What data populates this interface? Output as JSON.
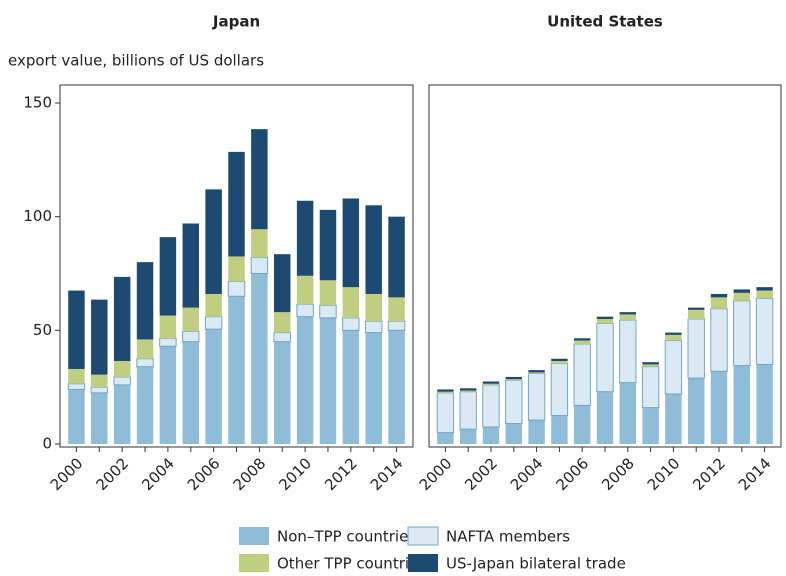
{
  "chart_data": [
    {
      "type": "stacked_bar",
      "title": "Japan",
      "ylabel": "export value, billions of US dollars",
      "categories": [
        "2000",
        null,
        "2002",
        null,
        "2004",
        null,
        "2006",
        null,
        "2008",
        null,
        "2010",
        null,
        "2012",
        null,
        "2014"
      ],
      "series": [
        {
          "name": "Non–TPP countries",
          "color": "#8fbcd6",
          "values": [
            24,
            22.5,
            26,
            34,
            43,
            45,
            50.5,
            65,
            75,
            45,
            56,
            55.5,
            50,
            49,
            50
          ]
        },
        {
          "name": "NAFTA members",
          "color": "#dae9f3",
          "values": [
            2.5,
            2.5,
            3.5,
            3.5,
            3.5,
            4.5,
            5.5,
            6.5,
            7,
            4,
            5.5,
            5.5,
            5.5,
            5,
            4
          ]
        },
        {
          "name": "Other TPP countries",
          "color": "#bfce80",
          "values": [
            6.5,
            5.5,
            7,
            8.5,
            10,
            10.5,
            10,
            11,
            12.5,
            9,
            12.5,
            11,
            13.5,
            12,
            10.5
          ]
        },
        {
          "name": "US-Japan bilateral trade",
          "color": "#1c4a70",
          "values": [
            34.5,
            33,
            37,
            34,
            34.5,
            37,
            46,
            46,
            44,
            25.5,
            33,
            31,
            39,
            39,
            35.5
          ]
        }
      ],
      "ylim": [
        0,
        150
      ],
      "yticks": [
        0,
        50,
        100,
        150
      ]
    },
    {
      "type": "stacked_bar",
      "title": "United States",
      "categories": [
        "2000",
        null,
        "2002",
        null,
        "2004",
        null,
        "2006",
        null,
        "2008",
        null,
        "2010",
        null,
        "2012",
        null,
        "2014"
      ],
      "series": [
        {
          "name": "Non–TPP countries",
          "color": "#8fbcd6",
          "values": [
            5,
            6.5,
            7.5,
            9,
            10.5,
            12.5,
            17,
            23,
            27,
            16,
            22,
            29,
            32,
            34.5,
            35
          ]
        },
        {
          "name": "NAFTA members",
          "color": "#dae9f3",
          "values": [
            17.5,
            16.5,
            18.5,
            19,
            20.5,
            23,
            27,
            30,
            27.5,
            18,
            23.5,
            26,
            27.5,
            28.5,
            29
          ]
        },
        {
          "name": "Other TPP countries",
          "color": "#bfce80",
          "values": [
            0.5,
            0.5,
            0.5,
            0.5,
            0.5,
            1,
            1.5,
            2,
            2.5,
            1,
            2.5,
            4,
            5,
            3.5,
            3.5
          ]
        },
        {
          "name": "US-Japan bilateral trade",
          "color": "#1c4a70",
          "values": [
            1,
            1,
            1,
            1,
            1,
            1,
            1,
            1,
            1,
            1,
            1,
            1,
            1.5,
            1.5,
            1.5
          ]
        }
      ],
      "ylim": [
        0,
        150
      ]
    }
  ]
}
